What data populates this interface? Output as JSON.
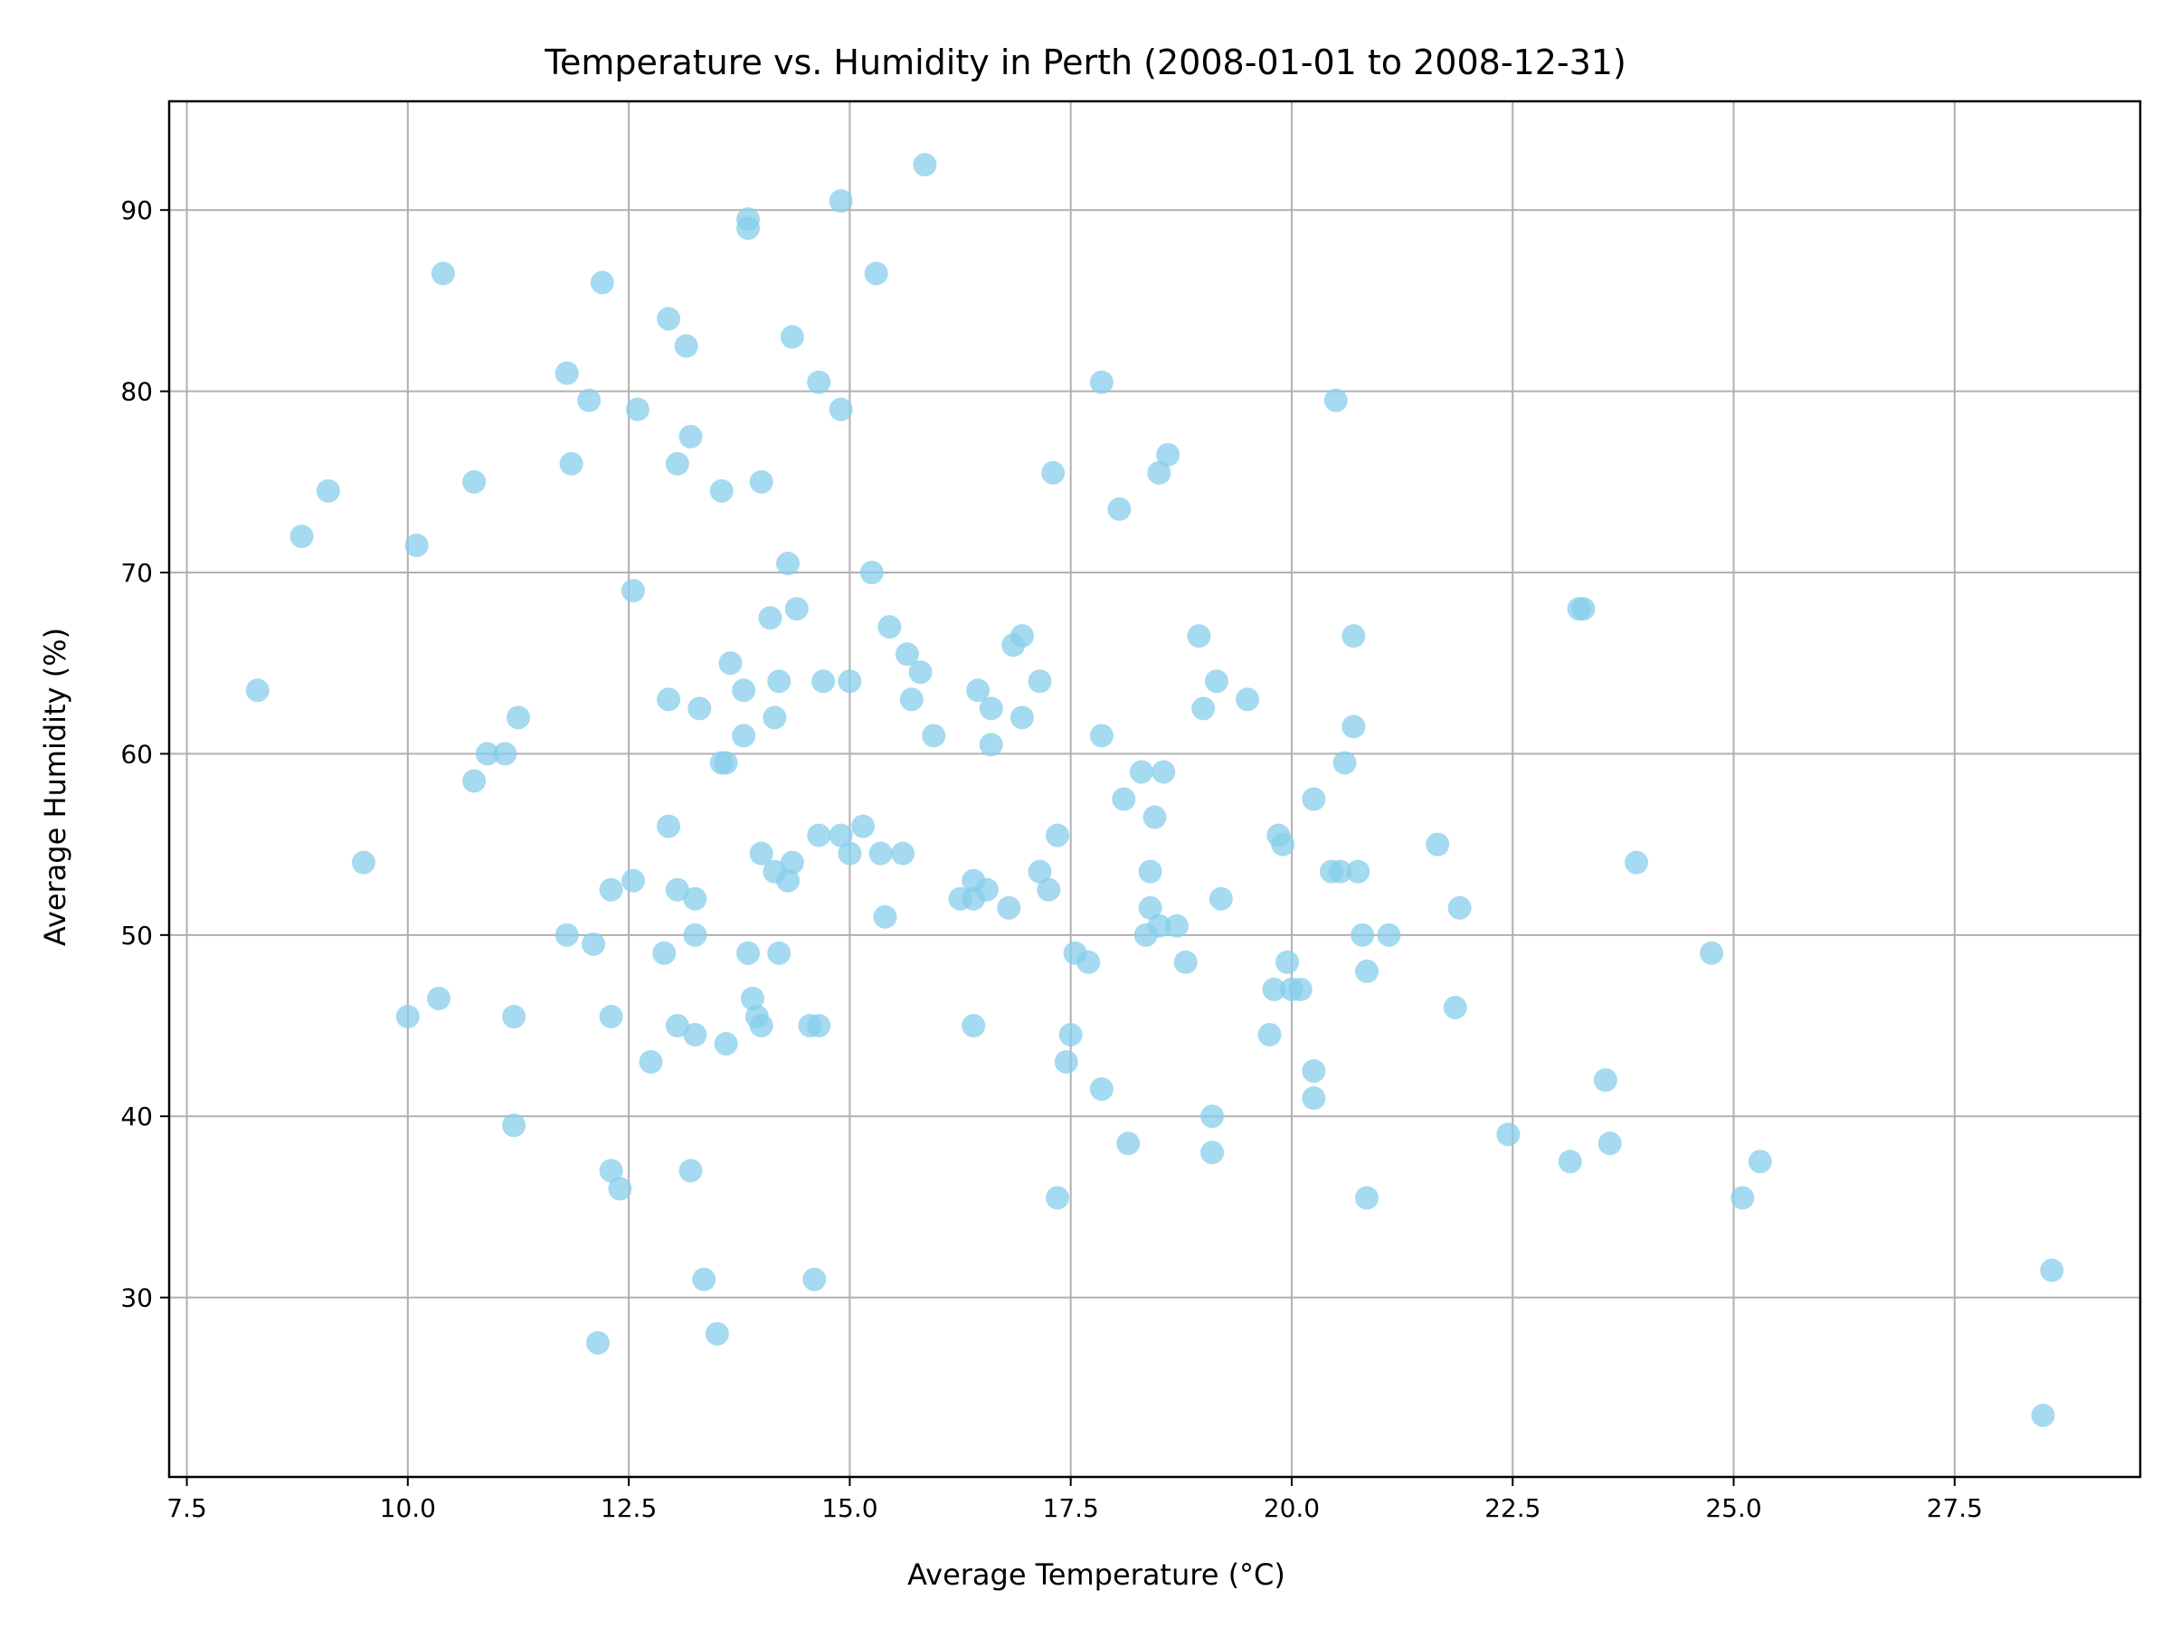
{
  "chart_data": {
    "type": "scatter",
    "title": "Temperature vs. Humidity in Perth (2008-01-01 to 2008-12-31)",
    "xlabel": "Average Temperature (°C)",
    "ylabel": "Average Humidity (%)",
    "xlim": [
      7.3,
      29.6
    ],
    "ylim": [
      20.1,
      96
    ],
    "xticks": [
      7.5,
      10.0,
      12.5,
      15.0,
      17.5,
      20.0,
      22.5,
      25.0,
      27.5
    ],
    "xtick_labels": [
      "7.5",
      "10.0",
      "12.5",
      "15.0",
      "17.5",
      "20.0",
      "22.5",
      "25.0",
      "27.5"
    ],
    "yticks": [
      30,
      40,
      50,
      60,
      70,
      80,
      90
    ],
    "ytick_labels": [
      "30",
      "40",
      "50",
      "60",
      "70",
      "80",
      "90"
    ],
    "grid": true,
    "marker_color": "#87ceeb",
    "marker_alpha": 0.75,
    "points": [
      [
        8.3,
        63.5
      ],
      [
        8.8,
        72.0
      ],
      [
        9.1,
        74.5
      ],
      [
        9.5,
        54.0
      ],
      [
        10.0,
        45.5
      ],
      [
        10.1,
        71.5
      ],
      [
        10.35,
        46.5
      ],
      [
        10.4,
        86.5
      ],
      [
        10.75,
        58.5
      ],
      [
        10.75,
        75.0
      ],
      [
        10.9,
        60.0
      ],
      [
        11.1,
        60.0
      ],
      [
        11.2,
        45.5
      ],
      [
        11.2,
        39.5
      ],
      [
        11.25,
        62.0
      ],
      [
        11.8,
        81.0
      ],
      [
        11.8,
        50.0
      ],
      [
        11.85,
        76.0
      ],
      [
        12.05,
        79.5
      ],
      [
        12.1,
        49.5
      ],
      [
        12.15,
        27.5
      ],
      [
        12.2,
        86.0
      ],
      [
        12.3,
        52.5
      ],
      [
        12.3,
        45.5
      ],
      [
        12.3,
        37.0
      ],
      [
        12.4,
        36.0
      ],
      [
        12.55,
        69.0
      ],
      [
        12.55,
        53.0
      ],
      [
        12.6,
        79.0
      ],
      [
        12.75,
        43.0
      ],
      [
        12.9,
        49.0
      ],
      [
        12.95,
        84.0
      ],
      [
        12.95,
        63.0
      ],
      [
        12.95,
        56.0
      ],
      [
        13.05,
        76.0
      ],
      [
        13.05,
        52.5
      ],
      [
        13.05,
        45.0
      ],
      [
        13.15,
        82.5
      ],
      [
        13.2,
        77.5
      ],
      [
        13.2,
        37.0
      ],
      [
        13.25,
        52.0
      ],
      [
        13.25,
        50.0
      ],
      [
        13.25,
        44.5
      ],
      [
        13.3,
        62.5
      ],
      [
        13.35,
        31.0
      ],
      [
        13.5,
        28.0
      ],
      [
        13.55,
        74.5
      ],
      [
        13.55,
        59.5
      ],
      [
        13.6,
        59.5
      ],
      [
        13.6,
        44.0
      ],
      [
        13.65,
        65.0
      ],
      [
        13.8,
        63.5
      ],
      [
        13.8,
        61.0
      ],
      [
        13.85,
        89.5
      ],
      [
        13.85,
        89.0
      ],
      [
        13.85,
        49.0
      ],
      [
        13.9,
        46.5
      ],
      [
        13.95,
        45.5
      ],
      [
        14.0,
        75.0
      ],
      [
        14.0,
        54.5
      ],
      [
        14.0,
        45.0
      ],
      [
        14.1,
        67.5
      ],
      [
        14.15,
        62.0
      ],
      [
        14.15,
        53.5
      ],
      [
        14.2,
        64.0
      ],
      [
        14.2,
        49.0
      ],
      [
        14.3,
        70.5
      ],
      [
        14.3,
        53.0
      ],
      [
        14.35,
        83.0
      ],
      [
        14.35,
        54.0
      ],
      [
        14.4,
        68.0
      ],
      [
        14.55,
        45.0
      ],
      [
        14.6,
        31.0
      ],
      [
        14.65,
        80.5
      ],
      [
        14.65,
        55.5
      ],
      [
        14.65,
        45.0
      ],
      [
        14.7,
        64.0
      ],
      [
        14.9,
        90.5
      ],
      [
        14.9,
        79.0
      ],
      [
        14.9,
        55.5
      ],
      [
        15.0,
        64.0
      ],
      [
        15.0,
        54.5
      ],
      [
        15.15,
        56.0
      ],
      [
        15.25,
        70.0
      ],
      [
        15.3,
        86.5
      ],
      [
        15.35,
        54.5
      ],
      [
        15.4,
        51.0
      ],
      [
        15.45,
        67.0
      ],
      [
        15.6,
        54.5
      ],
      [
        15.65,
        65.5
      ],
      [
        15.7,
        63.0
      ],
      [
        15.8,
        64.5
      ],
      [
        15.85,
        92.5
      ],
      [
        15.95,
        61.0
      ],
      [
        16.25,
        52.0
      ],
      [
        16.4,
        53.0
      ],
      [
        16.4,
        52.0
      ],
      [
        16.4,
        45.0
      ],
      [
        16.45,
        63.5
      ],
      [
        16.55,
        52.5
      ],
      [
        16.6,
        62.5
      ],
      [
        16.6,
        60.5
      ],
      [
        16.8,
        51.5
      ],
      [
        16.85,
        66.0
      ],
      [
        16.95,
        66.5
      ],
      [
        16.95,
        62.0
      ],
      [
        17.15,
        64.0
      ],
      [
        17.15,
        53.5
      ],
      [
        17.25,
        52.5
      ],
      [
        17.3,
        75.5
      ],
      [
        17.35,
        55.5
      ],
      [
        17.35,
        35.5
      ],
      [
        17.45,
        43.0
      ],
      [
        17.5,
        44.5
      ],
      [
        17.55,
        49.0
      ],
      [
        17.7,
        48.5
      ],
      [
        17.85,
        80.5
      ],
      [
        17.85,
        61.0
      ],
      [
        17.85,
        41.5
      ],
      [
        18.05,
        73.5
      ],
      [
        18.1,
        57.5
      ],
      [
        18.15,
        38.5
      ],
      [
        18.3,
        59.0
      ],
      [
        18.35,
        50.0
      ],
      [
        18.4,
        53.5
      ],
      [
        18.4,
        51.5
      ],
      [
        18.45,
        56.5
      ],
      [
        18.5,
        75.5
      ],
      [
        18.5,
        50.5
      ],
      [
        18.55,
        59.0
      ],
      [
        18.6,
        76.5
      ],
      [
        18.7,
        50.5
      ],
      [
        18.8,
        48.5
      ],
      [
        18.95,
        66.5
      ],
      [
        19.0,
        62.5
      ],
      [
        19.1,
        40.0
      ],
      [
        19.1,
        38.0
      ],
      [
        19.15,
        64.0
      ],
      [
        19.2,
        52.0
      ],
      [
        19.5,
        63.0
      ],
      [
        19.75,
        44.5
      ],
      [
        19.8,
        47.0
      ],
      [
        19.85,
        55.5
      ],
      [
        19.9,
        55.0
      ],
      [
        19.95,
        48.5
      ],
      [
        20.0,
        47.0
      ],
      [
        20.1,
        47.0
      ],
      [
        20.25,
        57.5
      ],
      [
        20.25,
        42.5
      ],
      [
        20.25,
        41.0
      ],
      [
        20.45,
        53.5
      ],
      [
        20.5,
        79.5
      ],
      [
        20.55,
        53.5
      ],
      [
        20.6,
        59.5
      ],
      [
        20.7,
        66.5
      ],
      [
        20.7,
        61.5
      ],
      [
        20.75,
        53.5
      ],
      [
        20.8,
        50.0
      ],
      [
        20.85,
        48.0
      ],
      [
        20.85,
        35.5
      ],
      [
        21.1,
        50.0
      ],
      [
        21.65,
        55.0
      ],
      [
        21.85,
        46.0
      ],
      [
        21.9,
        51.5
      ],
      [
        22.45,
        39.0
      ],
      [
        23.15,
        37.5
      ],
      [
        23.25,
        68.0
      ],
      [
        23.3,
        68.0
      ],
      [
        23.55,
        42.0
      ],
      [
        23.6,
        38.5
      ],
      [
        23.9,
        54.0
      ],
      [
        24.75,
        49.0
      ],
      [
        25.1,
        35.5
      ],
      [
        25.3,
        37.5
      ],
      [
        28.5,
        23.5
      ],
      [
        28.6,
        31.5
      ]
    ]
  }
}
